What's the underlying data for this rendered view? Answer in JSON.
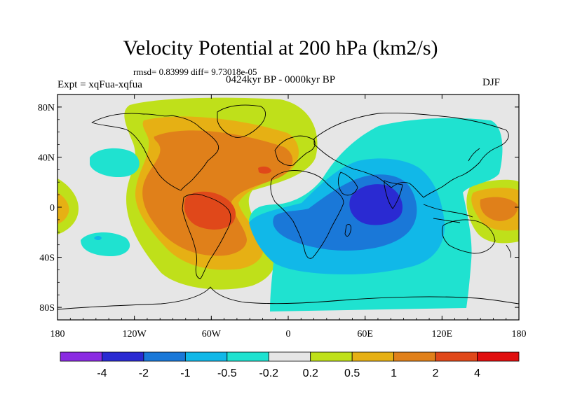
{
  "header": {
    "title": "Velocity Potential at 200 hPa (km2/s)",
    "stats": "rmsd= 0.83999 diff= 9.73018e-05",
    "experiment": "Expt = xqFua-xqfua",
    "period": "0424kyr BP - 0000kyr BP",
    "season": "DJF"
  },
  "map": {
    "projection": "cylindrical-equidistant",
    "lon_range": [
      -180,
      180
    ],
    "lat_range": [
      -90,
      90
    ],
    "lon_ticks": [
      {
        "value": -180,
        "label": "180"
      },
      {
        "value": -120,
        "label": "120W"
      },
      {
        "value": -60,
        "label": "60W"
      },
      {
        "value": 0,
        "label": "0"
      },
      {
        "value": 60,
        "label": "60E"
      },
      {
        "value": 120,
        "label": "120E"
      },
      {
        "value": 180,
        "label": "180"
      }
    ],
    "lat_ticks": [
      {
        "value": 80,
        "label": "80N"
      },
      {
        "value": 40,
        "label": "40N"
      },
      {
        "value": 0,
        "label": "0"
      },
      {
        "value": -40,
        "label": "40S"
      },
      {
        "value": -80,
        "label": "80S"
      }
    ]
  },
  "colorbar": {
    "levels": [
      "-4",
      "-2",
      "-1",
      "-0.5",
      "-0.2",
      "0.2",
      "0.5",
      "1",
      "2",
      "4"
    ],
    "colors": [
      "#8a2be2",
      "#2a2ad2",
      "#1a78d8",
      "#11b8e8",
      "#1fe2d0",
      "#e6e6e6",
      "#bfe01a",
      "#e6b014",
      "#e0801a",
      "#e0481a",
      "#e00e0e"
    ]
  },
  "colors": {
    "neutral": "#e6e6e6",
    "pos_02": "#bfe01a",
    "pos_05": "#e6b014",
    "pos_1": "#e0801a",
    "pos_2": "#e0481a",
    "neg_02": "#1fe2d0",
    "neg_05": "#11b8e8",
    "neg_1": "#1a78d8",
    "neg_2": "#2a2ad2"
  }
}
